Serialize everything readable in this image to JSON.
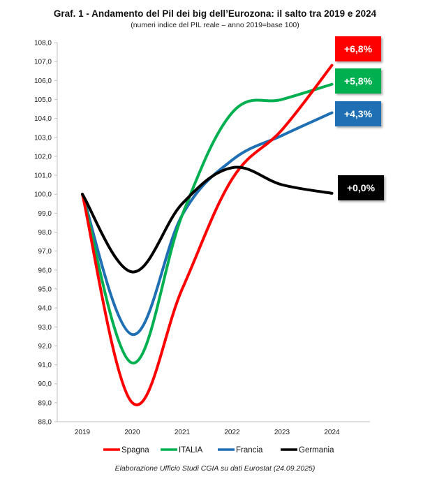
{
  "chart_data": {
    "type": "line",
    "title": "Graf. 1 - Andamento del Pil dei big dell’Eurozona: il salto tra 2019 e 2024",
    "subtitle": "(numeri indice del PIL reale – anno 2019=base 100)",
    "xlabel": "",
    "ylabel": "",
    "categories": [
      "2019",
      "2020",
      "2021",
      "2022",
      "2023",
      "2024"
    ],
    "ylim": [
      88.0,
      108.0
    ],
    "yticks": [
      "108,0",
      "107,0",
      "106,0",
      "105,0",
      "104,0",
      "103,0",
      "102,0",
      "101,0",
      "100,0",
      "99,0",
      "98,0",
      "97,0",
      "96,0",
      "95,0",
      "94,0",
      "93,0",
      "92,0",
      "91,0",
      "90,0",
      "89,0",
      "88,0"
    ],
    "grid": false,
    "legend": "bottom",
    "series": [
      {
        "name": "Spagna",
        "color": "#ff0000",
        "values": [
          100.0,
          89.0,
          95.0,
          100.8,
          103.4,
          106.8
        ],
        "badge": "+6,8%"
      },
      {
        "name": "ITALIA",
        "color": "#00b050",
        "values": [
          100.0,
          91.1,
          98.9,
          104.3,
          105.0,
          105.8
        ],
        "badge": "+5,8%"
      },
      {
        "name": "Francia",
        "color": "#1f6fb4",
        "values": [
          100.0,
          92.6,
          98.9,
          101.8,
          103.1,
          104.3
        ],
        "badge": "+4,3%"
      },
      {
        "name": "Germania",
        "color": "#000000",
        "values": [
          100.0,
          95.9,
          99.5,
          101.4,
          100.5,
          100.05
        ],
        "badge": "+0,0%"
      }
    ]
  },
  "source": "Elaborazione Ufficio Studi CGIA su dati Eurostat (24.09.2025)"
}
